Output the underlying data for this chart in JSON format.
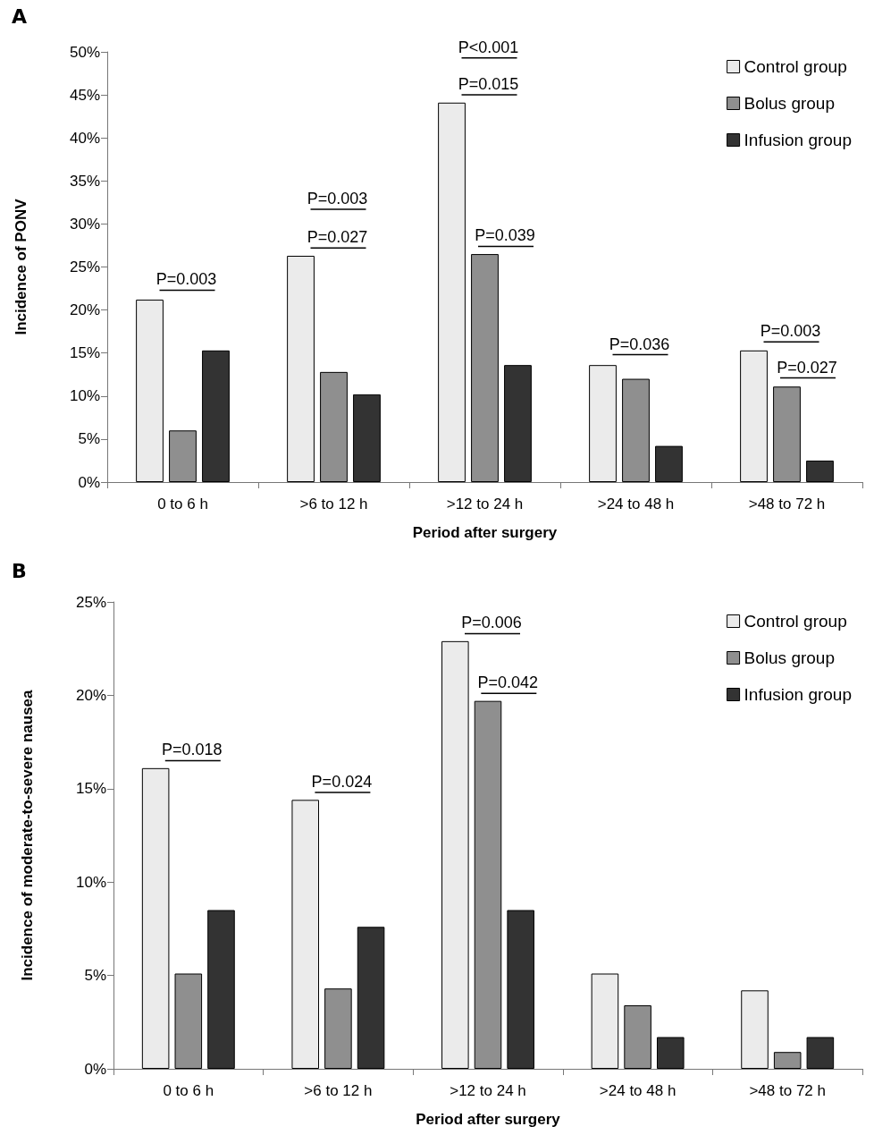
{
  "chart_data": [
    {
      "type": "bar",
      "title": "A",
      "xlabel": "Period after surgery",
      "ylabel": "Incidence of PONV",
      "categories": [
        "0 to 6 h",
        ">6 to 12 h",
        ">12 to 24 h",
        ">24 to 48 h",
        ">48 to 72 h"
      ],
      "series": [
        {
          "name": "Control group",
          "color": "#ebebeb",
          "values": [
            21.2,
            26.3,
            44.1,
            13.6,
            15.3
          ]
        },
        {
          "name": "Bolus group",
          "color": "#8f8f8f",
          "values": [
            6.0,
            12.8,
            26.5,
            12.0,
            11.1
          ]
        },
        {
          "name": "Infusion group",
          "color": "#333333",
          "values": [
            15.3,
            10.2,
            13.6,
            4.2,
            2.5
          ]
        }
      ],
      "ylim": [
        0,
        50
      ],
      "yticks": [
        {
          "value": 0,
          "label": "0%"
        },
        {
          "value": 5,
          "label": "5%"
        },
        {
          "value": 10,
          "label": "10%"
        },
        {
          "value": 15,
          "label": "15%"
        },
        {
          "value": 20,
          "label": "20%"
        },
        {
          "value": 25,
          "label": "25%"
        },
        {
          "value": 30,
          "label": "30%"
        },
        {
          "value": 35,
          "label": "35%"
        },
        {
          "value": 40,
          "label": "40%"
        },
        {
          "value": 45,
          "label": "45%"
        },
        {
          "value": 50,
          "label": "50%"
        }
      ],
      "grid": false,
      "legend": "top right",
      "annotations": [
        "P=0.003",
        "P=0.027",
        "P=0.003",
        "P=0.015",
        "P<0.001",
        "P=0.039",
        "P=0.036",
        "P=0.003",
        "P=0.027"
      ]
    },
    {
      "type": "bar",
      "title": "B",
      "xlabel": "Period after surgery",
      "ylabel": "Incidence of moderate-to-severe nausea",
      "categories": [
        "0 to 6 h",
        ">6 to 12 h",
        ">12 to 24 h",
        ">24 to 48 h",
        ">48 to 72 h"
      ],
      "series": [
        {
          "name": "Control group",
          "color": "#ebebeb",
          "values": [
            16.1,
            14.4,
            22.9,
            5.1,
            4.2
          ]
        },
        {
          "name": "Bolus group",
          "color": "#8f8f8f",
          "values": [
            5.1,
            4.3,
            19.7,
            3.4,
            0.9
          ]
        },
        {
          "name": "Infusion group",
          "color": "#333333",
          "values": [
            8.5,
            7.6,
            8.5,
            1.7,
            1.7
          ]
        }
      ],
      "ylim": [
        0,
        25
      ],
      "yticks": [
        {
          "value": 0,
          "label": "0%"
        },
        {
          "value": 5,
          "label": "5%"
        },
        {
          "value": 10,
          "label": "10%"
        },
        {
          "value": 15,
          "label": "15%"
        },
        {
          "value": 20,
          "label": "20%"
        },
        {
          "value": 25,
          "label": "25%"
        }
      ],
      "grid": false,
      "legend": "top right",
      "annotations": [
        "P=0.018",
        "P=0.024",
        "P=0.006",
        "P=0.042"
      ]
    }
  ]
}
